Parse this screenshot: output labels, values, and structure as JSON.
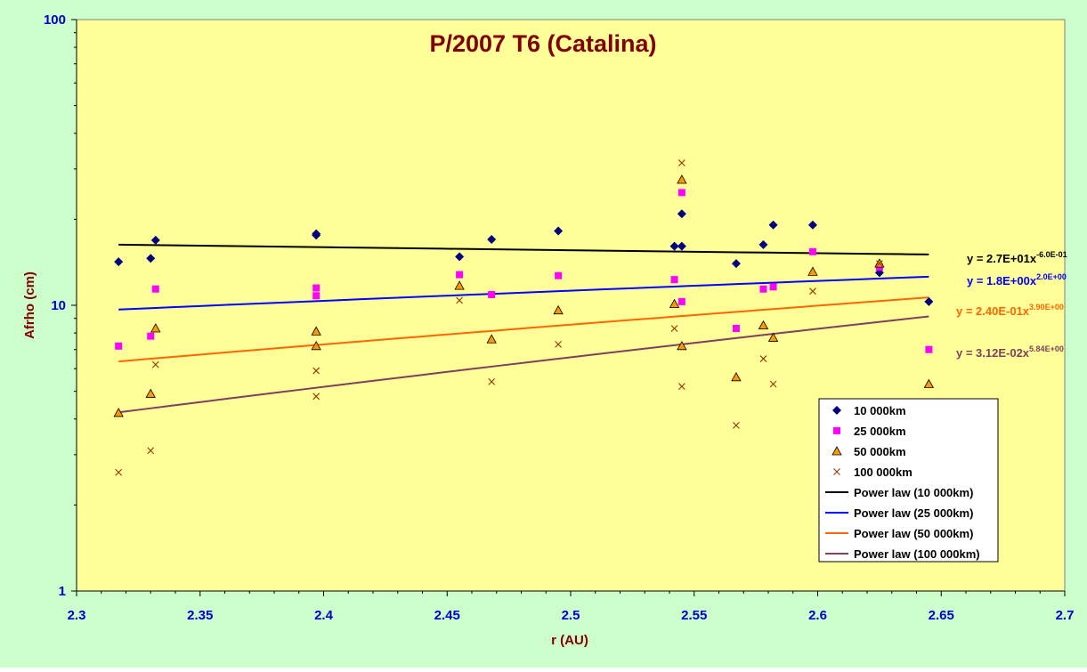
{
  "chart_data": {
    "type": "scatter",
    "title": "P/2007 T6 (Catalina)",
    "xlabel": "r (AU)",
    "ylabel": "Afrho (cm)",
    "xlim": [
      2.3,
      2.7
    ],
    "ylim": [
      1,
      100
    ],
    "yscale": "log",
    "grid": false,
    "x_ticks": [
      "2.3",
      "2.35",
      "2.4",
      "2.45",
      "2.5",
      "2.55",
      "2.6",
      "2.65",
      "2.7"
    ],
    "y_ticks": [
      "1",
      "10",
      "100"
    ],
    "legend_position": "bottom-right",
    "series": [
      {
        "name": "10 000km",
        "marker": "diamond",
        "color": "#000080",
        "points": [
          [
            2.317,
            14.2
          ],
          [
            2.33,
            14.6
          ],
          [
            2.332,
            16.9
          ],
          [
            2.397,
            17.8
          ],
          [
            2.397,
            17.6
          ],
          [
            2.455,
            14.8
          ],
          [
            2.468,
            17.0
          ],
          [
            2.495,
            18.2
          ],
          [
            2.542,
            16.1
          ],
          [
            2.545,
            20.9
          ],
          [
            2.545,
            16.1
          ],
          [
            2.567,
            14.0
          ],
          [
            2.578,
            16.3
          ],
          [
            2.582,
            19.1
          ],
          [
            2.598,
            19.1
          ],
          [
            2.625,
            13.0
          ],
          [
            2.645,
            10.3
          ]
        ]
      },
      {
        "name": "25 000km",
        "marker": "square",
        "color": "#FF00FF",
        "points": [
          [
            2.317,
            7.2
          ],
          [
            2.33,
            7.8
          ],
          [
            2.332,
            11.4
          ],
          [
            2.397,
            11.5
          ],
          [
            2.397,
            10.8
          ],
          [
            2.455,
            12.8
          ],
          [
            2.468,
            10.9
          ],
          [
            2.495,
            12.7
          ],
          [
            2.542,
            12.3
          ],
          [
            2.545,
            24.8
          ],
          [
            2.545,
            10.3
          ],
          [
            2.567,
            8.3
          ],
          [
            2.578,
            11.4
          ],
          [
            2.582,
            11.6
          ],
          [
            2.598,
            15.4
          ],
          [
            2.625,
            13.6
          ],
          [
            2.645,
            7.0
          ]
        ]
      },
      {
        "name": "50 000km",
        "marker": "triangle",
        "color": "#FF9900",
        "points": [
          [
            2.317,
            4.2
          ],
          [
            2.33,
            4.9
          ],
          [
            2.332,
            8.3
          ],
          [
            2.397,
            8.1
          ],
          [
            2.397,
            7.2
          ],
          [
            2.455,
            11.7
          ],
          [
            2.468,
            7.6
          ],
          [
            2.495,
            9.6
          ],
          [
            2.542,
            10.1
          ],
          [
            2.545,
            27.5
          ],
          [
            2.545,
            7.2
          ],
          [
            2.567,
            5.6
          ],
          [
            2.578,
            8.5
          ],
          [
            2.582,
            7.7
          ],
          [
            2.598,
            13.1
          ],
          [
            2.625,
            14.0
          ],
          [
            2.645,
            5.3
          ]
        ]
      },
      {
        "name": "100 000km",
        "marker": "x",
        "color": "#993300",
        "points": [
          [
            2.317,
            2.6
          ],
          [
            2.33,
            3.1
          ],
          [
            2.332,
            6.2
          ],
          [
            2.397,
            5.9
          ],
          [
            2.397,
            4.8
          ],
          [
            2.455,
            10.4
          ],
          [
            2.468,
            5.4
          ],
          [
            2.495,
            7.3
          ],
          [
            2.542,
            8.3
          ],
          [
            2.545,
            31.5
          ],
          [
            2.545,
            5.2
          ],
          [
            2.567,
            3.8
          ],
          [
            2.578,
            6.5
          ],
          [
            2.582,
            5.3
          ],
          [
            2.598,
            11.2
          ],
          [
            2.625,
            14.0
          ],
          [
            2.645,
            null
          ]
        ]
      }
    ],
    "trendlines": [
      {
        "name": "Power law (10 000km)",
        "color": "#000000",
        "coef": 27,
        "exp": -0.6,
        "label_main": "y = 2.7E+01x",
        "label_exp": "-6.0E-01",
        "label_color": "#000000"
      },
      {
        "name": "Power law (25 000km)",
        "color": "#0000FF",
        "coef": 1.8,
        "exp": 2.0,
        "label_main": "y = 1.8E+00x",
        "label_exp": "2.0E+00",
        "label_color": "#0000FF"
      },
      {
        "name": "Power law (50 000km)",
        "color": "#FF6600",
        "coef": 0.24,
        "exp": 3.9,
        "label_main": "y = 2.40E-01x",
        "label_exp": "3.90E+00",
        "label_color": "#FF6600"
      },
      {
        "name": "Power law (100 000km)",
        "color": "#7F3F5F",
        "coef": 0.0312,
        "exp": 5.84,
        "label_main": "y = 3.12E-02x",
        "label_exp": "5.84E+00",
        "label_color": "#7F3F5F"
      }
    ],
    "trend_x_range": [
      2.317,
      2.645
    ]
  }
}
